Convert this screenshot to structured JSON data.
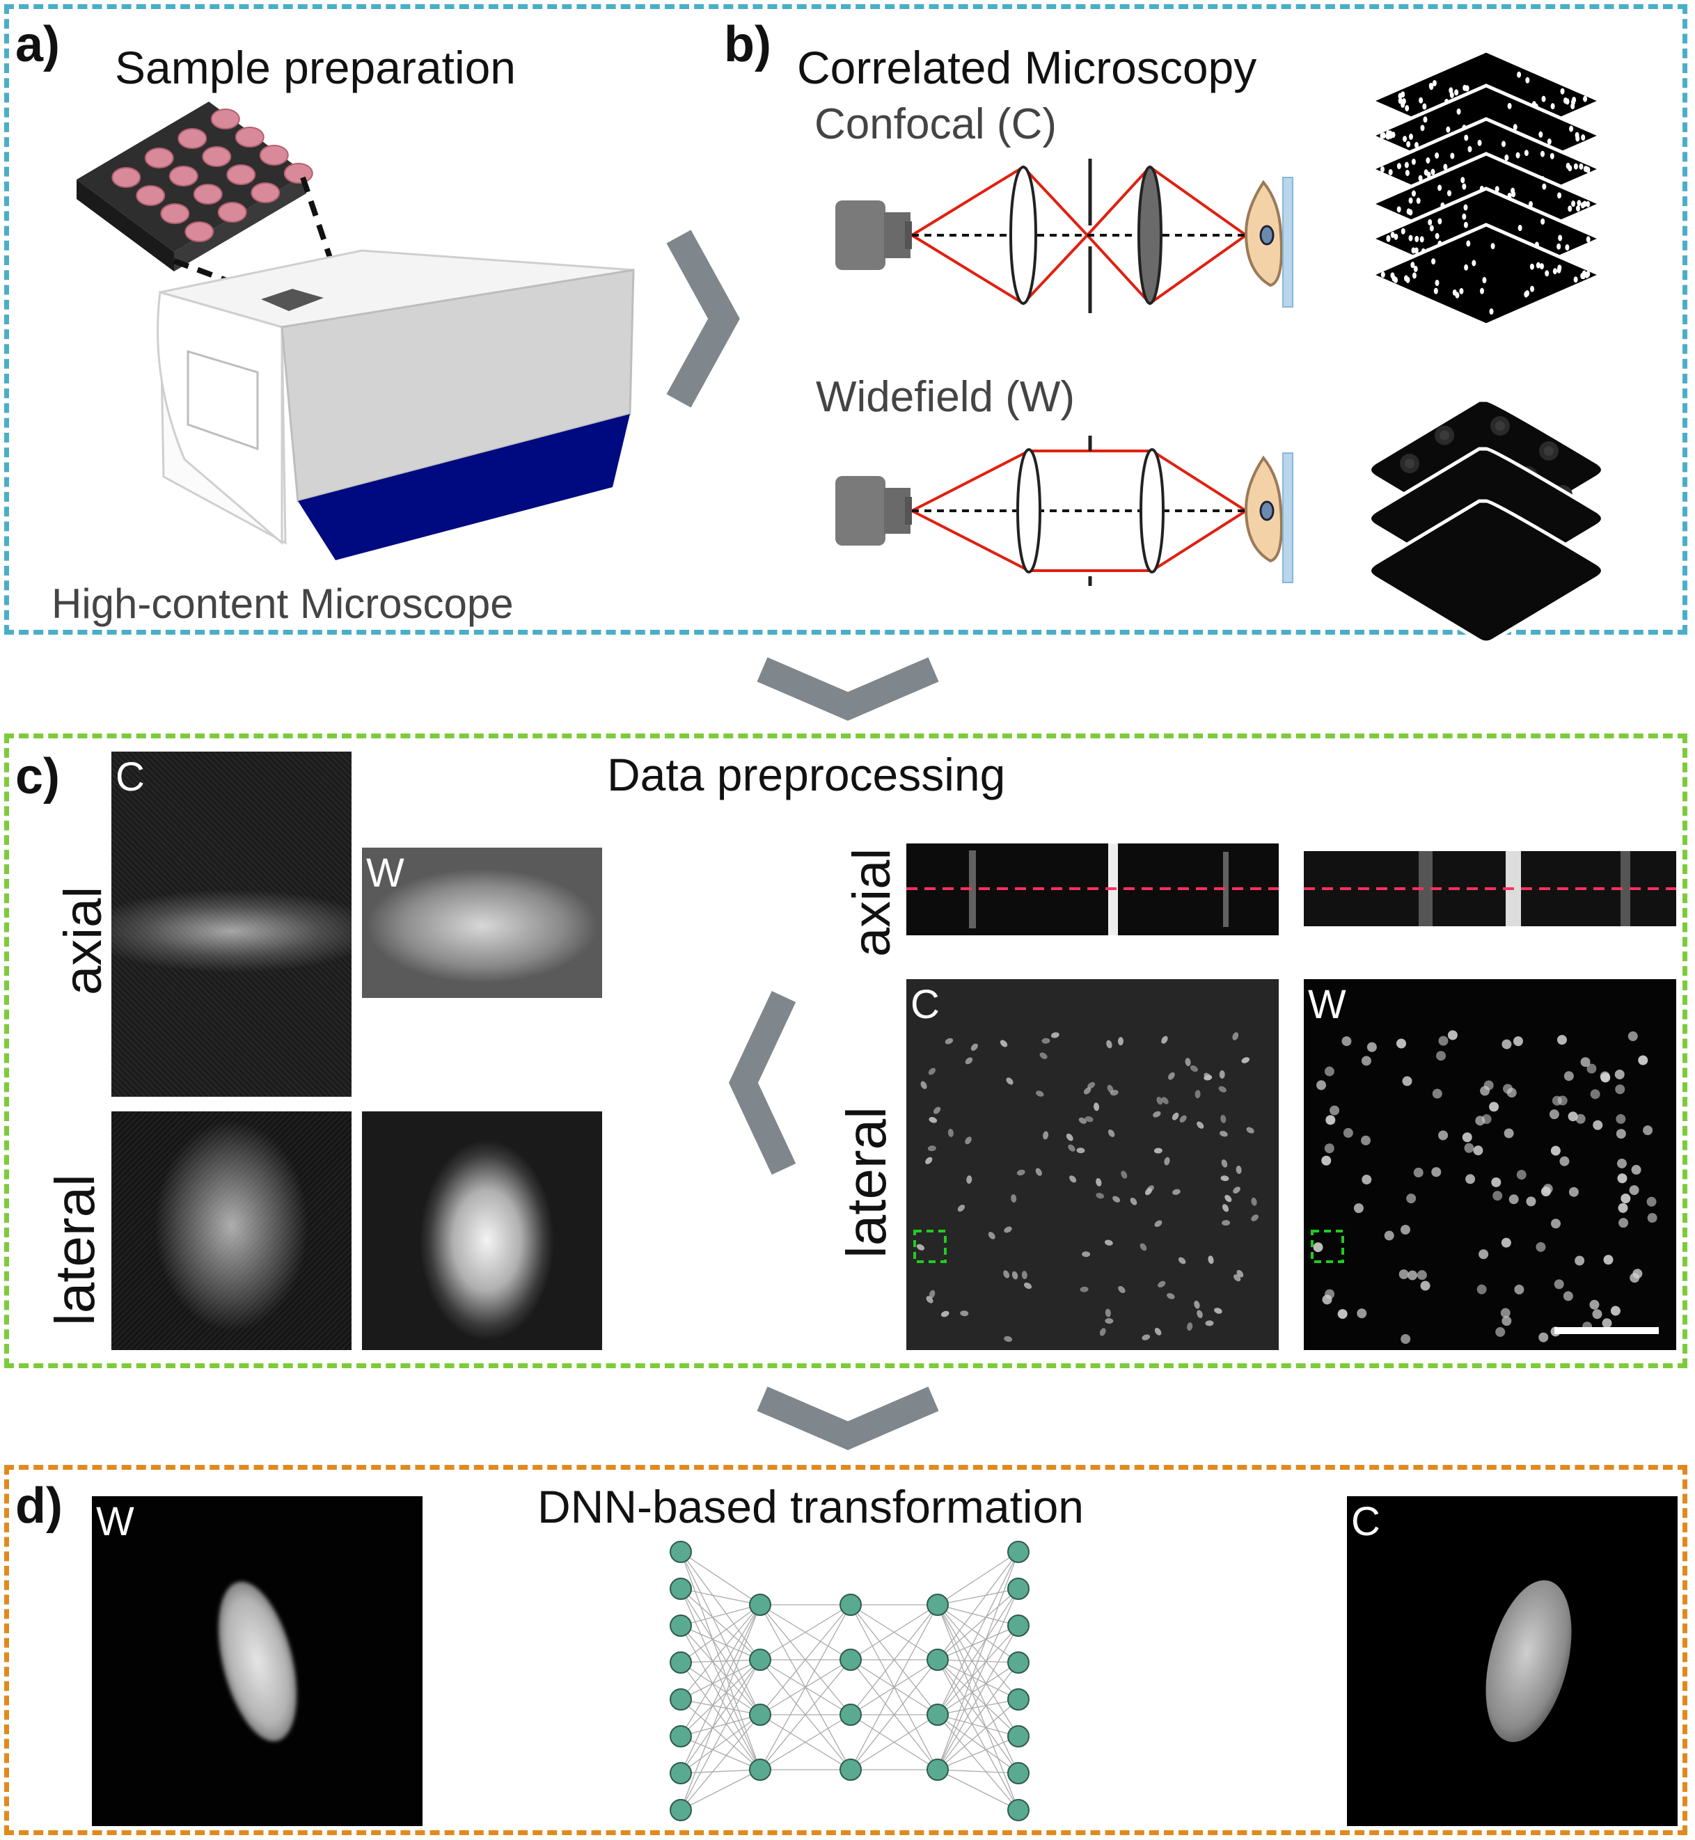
{
  "panel_a": {
    "label": "a)",
    "title": "Sample preparation",
    "microscope_caption": "High-content Microscope"
  },
  "panel_b": {
    "label": "b)",
    "title": "Correlated Microscopy",
    "confocal_label": "Confocal (C)",
    "widefield_label": "Widefield (W)"
  },
  "panel_c": {
    "label": "c)",
    "title": "Data preprocessing",
    "axial_left": "axial",
    "lateral_left": "lateral",
    "axial_right": "axial",
    "lateral_right": "lateral",
    "tag_c1": "C",
    "tag_w1": "W",
    "tag_c2": "C",
    "tag_w2": "W"
  },
  "panel_d": {
    "label": "d)",
    "title": "DNN-based transformation",
    "tag_w": "W",
    "tag_c": "C"
  },
  "colors": {
    "panel_a_b_border": "#4aaec8",
    "panel_c_border": "#7ccb3a",
    "panel_d_border": "#e08a1e",
    "arrow": "#7f868c",
    "beam": "#e02010",
    "microscope_blue": "#000a80",
    "plate_wells": "#d98a9a",
    "cell": "#f4d2a8",
    "node": "#5aaa92",
    "roi_box": "#22cc22",
    "axial_line": "#ff3060"
  },
  "icons": [
    "well-plate-icon",
    "microscope-icon",
    "camera-icon",
    "lens-icon",
    "pinhole-icon",
    "cell-icon",
    "chevron-right-icon",
    "chevron-down-icon",
    "chevron-left-icon",
    "neural-network-icon"
  ]
}
